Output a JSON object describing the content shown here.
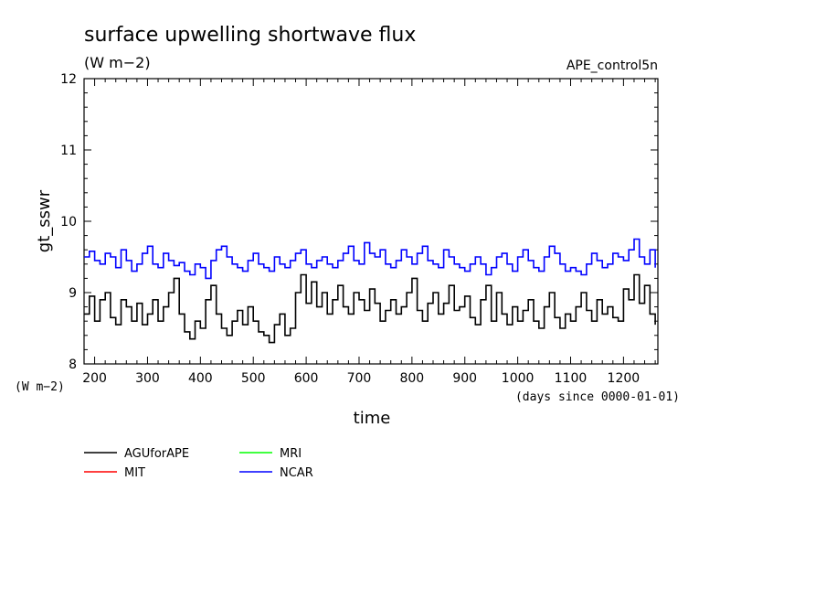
{
  "chart_data": {
    "type": "line",
    "title": "surface upwelling shortwave flux",
    "units": "(W m−2)",
    "run_label": "APE_control5n",
    "xlabel": "time",
    "xunits": "(days since 0000-01-01)",
    "ylabel": "gt_sswr",
    "yunits": "(W m−2)",
    "xlim": [
      180,
      1265
    ],
    "ylim": [
      8,
      12
    ],
    "x_ticks": [
      200,
      300,
      400,
      500,
      600,
      700,
      800,
      900,
      1000,
      1100,
      1200
    ],
    "y_ticks": [
      8,
      9,
      10,
      11,
      12
    ],
    "grid": false,
    "legend_position": "bottom-left",
    "series": [
      {
        "name": "AGUforAPE",
        "color": "#000000",
        "x": [
          180,
          190,
          200,
          210,
          220,
          230,
          240,
          250,
          260,
          270,
          280,
          290,
          300,
          310,
          320,
          330,
          340,
          350,
          360,
          370,
          380,
          390,
          400,
          410,
          420,
          430,
          440,
          450,
          460,
          470,
          480,
          490,
          500,
          510,
          520,
          530,
          540,
          550,
          560,
          570,
          580,
          590,
          600,
          610,
          620,
          630,
          640,
          650,
          660,
          670,
          680,
          690,
          700,
          710,
          720,
          730,
          740,
          750,
          760,
          770,
          780,
          790,
          800,
          810,
          820,
          830,
          840,
          850,
          860,
          870,
          880,
          890,
          900,
          910,
          920,
          930,
          940,
          950,
          960,
          970,
          980,
          990,
          1000,
          1010,
          1020,
          1030,
          1040,
          1050,
          1060,
          1070,
          1080,
          1090,
          1100,
          1110,
          1120,
          1130,
          1140,
          1150,
          1160,
          1170,
          1180,
          1190,
          1200,
          1210,
          1220,
          1230,
          1240,
          1250,
          1260
        ],
        "y": [
          8.7,
          8.95,
          8.6,
          8.9,
          9.0,
          8.65,
          8.55,
          8.9,
          8.8,
          8.6,
          8.85,
          8.55,
          8.7,
          8.9,
          8.6,
          8.8,
          9.0,
          9.2,
          8.7,
          8.45,
          8.35,
          8.6,
          8.5,
          8.9,
          9.1,
          8.7,
          8.5,
          8.4,
          8.6,
          8.75,
          8.55,
          8.8,
          8.6,
          8.45,
          8.4,
          8.3,
          8.55,
          8.7,
          8.4,
          8.5,
          9.0,
          9.25,
          8.85,
          9.15,
          8.8,
          9.0,
          8.7,
          8.9,
          9.1,
          8.8,
          8.7,
          9.0,
          8.9,
          8.75,
          9.05,
          8.85,
          8.6,
          8.75,
          8.9,
          8.7,
          8.8,
          9.0,
          9.2,
          8.75,
          8.6,
          8.85,
          9.0,
          8.7,
          8.85,
          9.1,
          8.75,
          8.8,
          8.95,
          8.65,
          8.55,
          8.9,
          9.1,
          8.6,
          9.0,
          8.7,
          8.55,
          8.8,
          8.6,
          8.75,
          8.9,
          8.6,
          8.5,
          8.8,
          9.0,
          8.65,
          8.5,
          8.7,
          8.6,
          8.8,
          9.0,
          8.75,
          8.6,
          8.9,
          8.7,
          8.8,
          8.65,
          8.6,
          9.05,
          8.9,
          9.25,
          8.85,
          9.1,
          8.7,
          8.55
        ]
      },
      {
        "name": "MIT",
        "color": "#ff0000",
        "x": [],
        "y": []
      },
      {
        "name": "MRI",
        "color": "#00ff00",
        "x": [],
        "y": []
      },
      {
        "name": "NCAR",
        "color": "#0000ff",
        "x": [
          180,
          190,
          200,
          210,
          220,
          230,
          240,
          250,
          260,
          270,
          280,
          290,
          300,
          310,
          320,
          330,
          340,
          350,
          360,
          370,
          380,
          390,
          400,
          410,
          420,
          430,
          440,
          450,
          460,
          470,
          480,
          490,
          500,
          510,
          520,
          530,
          540,
          550,
          560,
          570,
          580,
          590,
          600,
          610,
          620,
          630,
          640,
          650,
          660,
          670,
          680,
          690,
          700,
          710,
          720,
          730,
          740,
          750,
          760,
          770,
          780,
          790,
          800,
          810,
          820,
          830,
          840,
          850,
          860,
          870,
          880,
          890,
          900,
          910,
          920,
          930,
          940,
          950,
          960,
          970,
          980,
          990,
          1000,
          1010,
          1020,
          1030,
          1040,
          1050,
          1060,
          1070,
          1080,
          1090,
          1100,
          1110,
          1120,
          1130,
          1140,
          1150,
          1160,
          1170,
          1180,
          1190,
          1200,
          1210,
          1220,
          1230,
          1240,
          1250,
          1260
        ],
        "y": [
          9.5,
          9.58,
          9.45,
          9.4,
          9.55,
          9.5,
          9.35,
          9.6,
          9.45,
          9.3,
          9.4,
          9.55,
          9.65,
          9.4,
          9.35,
          9.55,
          9.45,
          9.38,
          9.42,
          9.3,
          9.25,
          9.4,
          9.35,
          9.2,
          9.45,
          9.6,
          9.65,
          9.5,
          9.4,
          9.35,
          9.3,
          9.45,
          9.55,
          9.4,
          9.35,
          9.3,
          9.5,
          9.4,
          9.35,
          9.45,
          9.55,
          9.6,
          9.4,
          9.35,
          9.45,
          9.5,
          9.4,
          9.35,
          9.45,
          9.55,
          9.65,
          9.45,
          9.4,
          9.7,
          9.55,
          9.5,
          9.6,
          9.4,
          9.35,
          9.45,
          9.6,
          9.5,
          9.4,
          9.55,
          9.65,
          9.45,
          9.4,
          9.35,
          9.6,
          9.5,
          9.4,
          9.35,
          9.3,
          9.4,
          9.5,
          9.4,
          9.25,
          9.35,
          9.5,
          9.55,
          9.4,
          9.3,
          9.5,
          9.6,
          9.45,
          9.35,
          9.3,
          9.5,
          9.65,
          9.55,
          9.4,
          9.3,
          9.35,
          9.3,
          9.25,
          9.4,
          9.55,
          9.45,
          9.35,
          9.4,
          9.55,
          9.5,
          9.45,
          9.6,
          9.75,
          9.5,
          9.4,
          9.6,
          9.35
        ]
      }
    ]
  }
}
